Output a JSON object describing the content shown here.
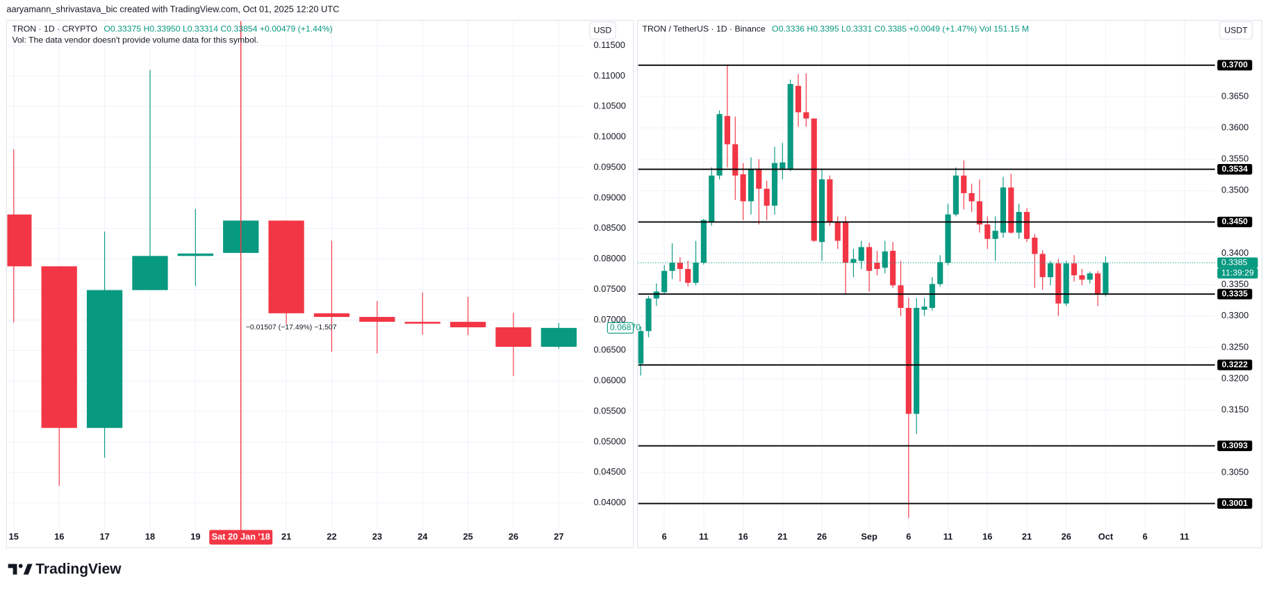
{
  "header": "aaryamann_shrivastava_bic created with TradingView.com, Oct 01, 2025 12:20 UTC",
  "footer": "TradingView",
  "chart_data": [
    {
      "type": "candlestick",
      "symbol": "TRON · 1D · CRYPTO",
      "ohlc": "O0.33375 H0.33950 L0.33314 C0.33854 +0.00479 (+1.44%)",
      "note": "Vol: The data vendor doesn't provide volume data for this symbol.",
      "currency": "USD",
      "categories": [
        "15",
        "16",
        "17",
        "18",
        "19",
        "Sat 20 Jan '18",
        "21",
        "22",
        "23",
        "24",
        "25",
        "26",
        "27"
      ],
      "open": [
        0.0873,
        0.0788,
        0.0523,
        0.0749,
        0.0805,
        0.081,
        0.0863,
        0.0711,
        0.0705,
        0.0697,
        0.0697,
        0.0688,
        0.0656
      ],
      "high": [
        0.098,
        0.0788,
        0.0845,
        0.111,
        0.0882,
        0.0887,
        0.0863,
        0.083,
        0.0731,
        0.0745,
        0.0738,
        0.0712,
        0.0695
      ],
      "low": [
        0.0696,
        0.0428,
        0.0474,
        0.0749,
        0.0756,
        0.0805,
        0.0693,
        0.0648,
        0.0645,
        0.0676,
        0.0675,
        0.0608,
        0.0653
      ],
      "close": [
        0.0788,
        0.0523,
        0.0749,
        0.0805,
        0.0809,
        0.0863,
        0.0711,
        0.0705,
        0.0697,
        0.0694,
        0.0688,
        0.0656,
        0.0687
      ],
      "up_color": "#089981",
      "down_color": "#f23645",
      "ylim": [
        0.0361,
        0.1198
      ],
      "yticks": [
        {
          "value": 0.04,
          "label": "0.04000"
        },
        {
          "value": 0.045,
          "label": "0.04500"
        },
        {
          "value": 0.05,
          "label": "0.05000"
        },
        {
          "value": 0.055,
          "label": "0.05500"
        },
        {
          "value": 0.06,
          "label": "0.06000"
        },
        {
          "value": 0.065,
          "label": "0.06500"
        },
        {
          "value": 0.07,
          "label": "0.07000"
        },
        {
          "value": 0.075,
          "label": "0.07500"
        },
        {
          "value": 0.08,
          "label": "0.08000"
        },
        {
          "value": 0.085,
          "label": "0.08500"
        },
        {
          "value": 0.09,
          "label": "0.09000"
        },
        {
          "value": 0.095,
          "label": "0.09500"
        },
        {
          "value": 0.1,
          "label": "0.10000"
        },
        {
          "value": 0.105,
          "label": "0.10500"
        },
        {
          "value": 0.11,
          "label": "0.11000"
        },
        {
          "value": 0.115,
          "label": "0.11500"
        }
      ],
      "grid": true,
      "last_price": {
        "value": 0.0687,
        "label": "0.06870"
      },
      "annotation": "−0.01507 (−17.49%) −1,507"
    },
    {
      "type": "candlestick",
      "symbol": "TRON / TetherUS · 1D · Binance",
      "ohlc": "O0.3336 H0.3395 L0.3331 C0.3385 +0.0049 (+1.47%) Vol 151.15 M",
      "currency": "USDT",
      "categories": [
        null,
        null,
        null,
        "6",
        null,
        null,
        null,
        null,
        "11",
        null,
        null,
        null,
        null,
        "16",
        null,
        null,
        null,
        null,
        "21",
        null,
        null,
        null,
        null,
        "26",
        null,
        null,
        null,
        null,
        null,
        "Sep",
        null,
        null,
        null,
        null,
        "6",
        null,
        null,
        null,
        null,
        "11",
        null,
        null,
        null,
        null,
        "16",
        null,
        null,
        null,
        null,
        "21",
        null,
        null,
        null,
        null,
        "26",
        null,
        null,
        null,
        null,
        "Oct",
        null,
        null,
        null,
        null,
        "6",
        null,
        null,
        null,
        null,
        "11",
        null,
        null,
        null
      ],
      "open": [
        0.3224,
        0.3276,
        0.3328,
        0.3338,
        0.3372,
        0.3385,
        0.3375,
        0.3353,
        0.3385,
        0.345,
        0.3524,
        0.3619,
        0.3574,
        0.3526,
        0.3483,
        0.3535,
        0.3503,
        0.3476,
        0.3535,
        0.3535,
        0.3667,
        0.3625,
        0.3615,
        0.3418,
        0.3518,
        0.3449,
        0.3449,
        0.3385,
        0.3388,
        0.341,
        0.3385,
        0.3377,
        0.3404,
        0.3349,
        0.3313,
        0.3144,
        0.331,
        0.3313,
        0.3351,
        0.3385,
        0.3462,
        0.3524,
        0.3496,
        0.3483,
        0.3446,
        0.3423,
        0.3433,
        0.3505,
        0.3433,
        0.3466,
        0.3425,
        0.3399,
        0.3362,
        0.3384,
        0.332,
        0.3384,
        0.3365,
        0.3358,
        0.3368,
        0.3336,
        null,
        null,
        null,
        null,
        null,
        null,
        null,
        null,
        null,
        null,
        null,
        null,
        null
      ],
      "high": [
        0.3283,
        0.3332,
        0.3352,
        0.3381,
        0.3416,
        0.3394,
        0.3388,
        0.342,
        0.3455,
        0.3537,
        0.3628,
        0.37,
        0.3618,
        0.3544,
        0.3553,
        0.355,
        0.3516,
        0.357,
        0.3576,
        0.3677,
        0.3686,
        0.3687,
        0.3615,
        0.3535,
        0.3524,
        0.3459,
        0.3459,
        0.3407,
        0.342,
        0.3417,
        0.3404,
        0.342,
        0.3418,
        0.3388,
        0.3329,
        0.3329,
        0.3329,
        0.3362,
        0.3397,
        0.3479,
        0.3537,
        0.3548,
        0.3511,
        0.3518,
        0.3459,
        0.3459,
        0.3522,
        0.3527,
        0.3479,
        0.3472,
        0.3431,
        0.3405,
        0.3388,
        0.3391,
        0.3388,
        0.3397,
        0.3375,
        0.3371,
        0.3372,
        0.3395,
        null,
        null,
        null,
        null,
        null,
        null,
        null,
        null,
        null,
        null,
        null,
        null,
        null
      ],
      "low": [
        0.3205,
        0.3266,
        0.3316,
        0.3335,
        0.3359,
        0.3355,
        0.3347,
        0.3349,
        0.3382,
        0.3444,
        0.3518,
        0.3537,
        0.3485,
        0.3453,
        0.3462,
        0.3446,
        0.3453,
        0.3462,
        0.3518,
        0.3531,
        0.3602,
        0.3602,
        0.3418,
        0.3388,
        0.3444,
        0.3407,
        0.3335,
        0.3362,
        0.3375,
        0.3339,
        0.3365,
        0.3368,
        0.3345,
        0.33,
        0.2978,
        0.3112,
        0.33,
        0.3309,
        0.3347,
        0.3381,
        0.3459,
        0.347,
        0.3466,
        0.3433,
        0.3407,
        0.3388,
        0.3425,
        0.3431,
        0.3423,
        0.3418,
        0.3345,
        0.3342,
        0.3349,
        0.33,
        0.3316,
        0.3355,
        0.3349,
        0.3352,
        0.3316,
        0.3331,
        null,
        null,
        null,
        null,
        null,
        null,
        null,
        null,
        null,
        null,
        null,
        null,
        null
      ],
      "close": [
        0.3276,
        0.3328,
        0.3339,
        0.3372,
        0.3385,
        0.3375,
        0.3353,
        0.3385,
        0.3453,
        0.3524,
        0.3622,
        0.3574,
        0.3524,
        0.3483,
        0.3535,
        0.3503,
        0.3476,
        0.3544,
        0.3545,
        0.367,
        0.3625,
        0.3615,
        0.342,
        0.3518,
        0.3449,
        0.342,
        0.3385,
        0.3391,
        0.341,
        0.3372,
        0.3375,
        0.3403,
        0.3349,
        0.3313,
        0.3144,
        0.3313,
        0.3315,
        0.3351,
        0.3386,
        0.3462,
        0.3524,
        0.3496,
        0.3483,
        0.3446,
        0.3423,
        0.3436,
        0.3505,
        0.3433,
        0.3466,
        0.3423,
        0.3399,
        0.3362,
        0.3384,
        0.332,
        0.3384,
        0.3365,
        0.3358,
        0.3368,
        0.3335,
        0.3385,
        null,
        null,
        null,
        null,
        null,
        null,
        null,
        null,
        null,
        null,
        null,
        null,
        null
      ],
      "up_color": "#089981",
      "down_color": "#f23645",
      "ylim": [
        0.2964,
        0.3778
      ],
      "yticks": [
        {
          "value": 0.305,
          "label": "0.3050"
        },
        {
          "value": 0.315,
          "label": "0.3150"
        },
        {
          "value": 0.32,
          "label": "0.3200"
        },
        {
          "value": 0.325,
          "label": "0.3250"
        },
        {
          "value": 0.33,
          "label": "0.3300"
        },
        {
          "value": 0.335,
          "label": "0.3350"
        },
        {
          "value": 0.34,
          "label": "0.3400"
        },
        {
          "value": 0.35,
          "label": "0.3500"
        },
        {
          "value": 0.355,
          "label": "0.3550"
        },
        {
          "value": 0.36,
          "label": "0.3600"
        },
        {
          "value": 0.365,
          "label": "0.3650"
        }
      ],
      "grid": true,
      "levels": [
        {
          "value": 0.37,
          "label": "0.3700"
        },
        {
          "value": 0.3534,
          "label": "0.3534"
        },
        {
          "value": 0.345,
          "label": "0.3450"
        },
        {
          "value": 0.3335,
          "label": "0.3335"
        },
        {
          "value": 0.3222,
          "label": "0.3222"
        },
        {
          "value": 0.3093,
          "label": "0.3093"
        },
        {
          "value": 0.3001,
          "label": "0.3001"
        }
      ],
      "last_price": 0.3385,
      "countdown": "11:39:29"
    }
  ]
}
